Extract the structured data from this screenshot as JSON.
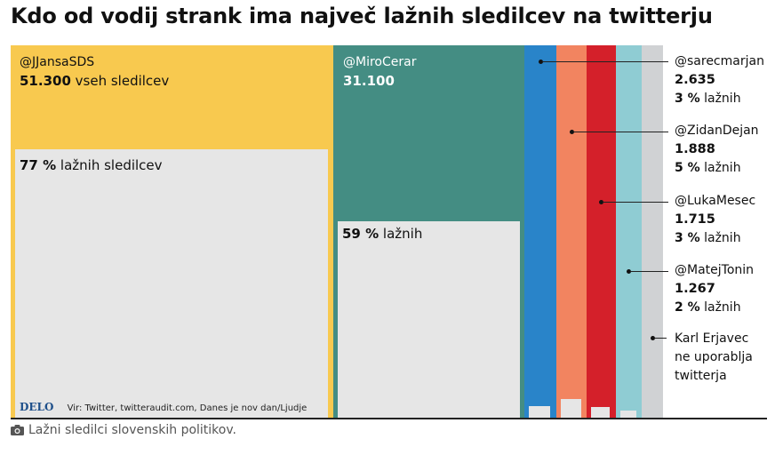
{
  "title": "Kdo od vodij strank ima največ lažnih sledilcev na twitterju",
  "caption": "Lažni sledilci slovenskih politikov.",
  "source": {
    "brand": "DELO",
    "text": "Vir: Twitter, twitteraudit.com, Danes je nov dan/Ljudje"
  },
  "chart_data": {
    "type": "bar",
    "subtype": "proportional-area (marimekko) with fake-share overlay",
    "categories": [
      "@JJansaSDS",
      "@MiroCerar",
      "@sarecmarjan",
      "@ZidanDejan",
      "@LukaMesec",
      "@MatejTonin",
      "Karl Erjavec"
    ],
    "series": [
      {
        "name": "vseh sledilcev",
        "values": [
          51300,
          31100,
          2635,
          1888,
          1715,
          1267,
          null
        ]
      },
      {
        "name": "lažnih %",
        "values": [
          77,
          59,
          3,
          5,
          3,
          2,
          null
        ]
      }
    ],
    "colors": [
      "#f8c94f",
      "#448d83",
      "#2984c9",
      "#f28460",
      "#d4202a",
      "#8fccd3",
      "#d0d2d4"
    ],
    "big": [
      {
        "handle": "@JJansaSDS",
        "total_label": "51.300",
        "total_suffix": "vseh sledilcev",
        "pct_label": "77 %",
        "pct_suffix": "lažnih sledilcev"
      },
      {
        "handle": "@MiroCerar",
        "total_label": "31.100",
        "pct_label": "59 %",
        "pct_suffix": "lažnih"
      }
    ],
    "legend": [
      {
        "handle": "@sarecmarjan",
        "total": "2.635",
        "pct": "3 %",
        "pct_suffix": "lažnih"
      },
      {
        "handle": "@ZidanDejan",
        "total": "1.888",
        "pct": "5 %",
        "pct_suffix": "lažnih"
      },
      {
        "handle": "@LukaMesec",
        "total": "1.715",
        "pct": "3 %",
        "pct_suffix": "lažnih"
      },
      {
        "handle": "@MatejTonin",
        "total": "1.267",
        "pct": "2 %",
        "pct_suffix": "lažnih"
      },
      {
        "note": "Karl Erjavec\nne uporablja\ntwitterja"
      }
    ]
  }
}
